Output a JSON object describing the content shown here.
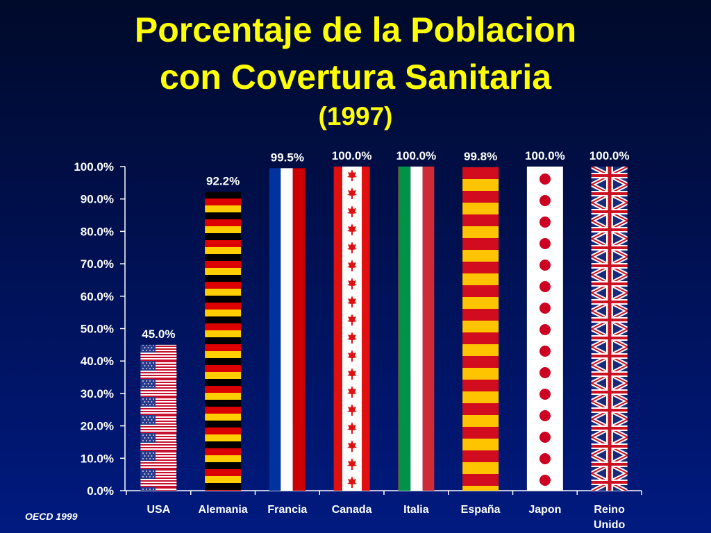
{
  "title_lines": [
    "Porcentaje de la Poblacion",
    "con Covertura Sanitaria",
    "(1997)"
  ],
  "source": "OECD 1999",
  "colors": {
    "title": "#ffff00",
    "text": "#ffffff",
    "axis": "#ffffff",
    "background_top": "#000a2a",
    "background_bottom": "#001a80"
  },
  "chart_data": {
    "type": "bar",
    "title": "Porcentaje de la Poblacion con Covertura Sanitaria (1997)",
    "categories": [
      "USA",
      "Alemania",
      "Francia",
      "Canada",
      "Italia",
      "España",
      "Japon",
      "Reino Unido"
    ],
    "category_labels": [
      [
        "USA"
      ],
      [
        "Alemania"
      ],
      [
        "Francia"
      ],
      [
        "Canada"
      ],
      [
        "Italia"
      ],
      [
        "España"
      ],
      [
        "Japon"
      ],
      [
        "Reino",
        "Unido"
      ]
    ],
    "values": [
      45.0,
      92.2,
      99.5,
      100.0,
      100.0,
      99.8,
      100.0,
      100.0
    ],
    "data_labels": [
      "45.0%",
      "92.2%",
      "99.5%",
      "100.0%",
      "100.0%",
      "99.8%",
      "100.0%",
      "100.0%"
    ],
    "bar_fills": [
      "flag-usa",
      "flag-germany",
      "flag-france",
      "flag-canada",
      "flag-italy",
      "flag-spain",
      "flag-japan",
      "flag-uk"
    ],
    "ylim": [
      0,
      100
    ],
    "yticks": [
      0,
      10,
      20,
      30,
      40,
      50,
      60,
      70,
      80,
      90,
      100
    ],
    "ytick_labels": [
      "0.0%",
      "10.0%",
      "20.0%",
      "30.0%",
      "40.0%",
      "50.0%",
      "60.0%",
      "70.0%",
      "80.0%",
      "90.0%",
      "100.0%"
    ],
    "xlabel": "",
    "ylabel": "",
    "grid": false,
    "legend": "none"
  }
}
